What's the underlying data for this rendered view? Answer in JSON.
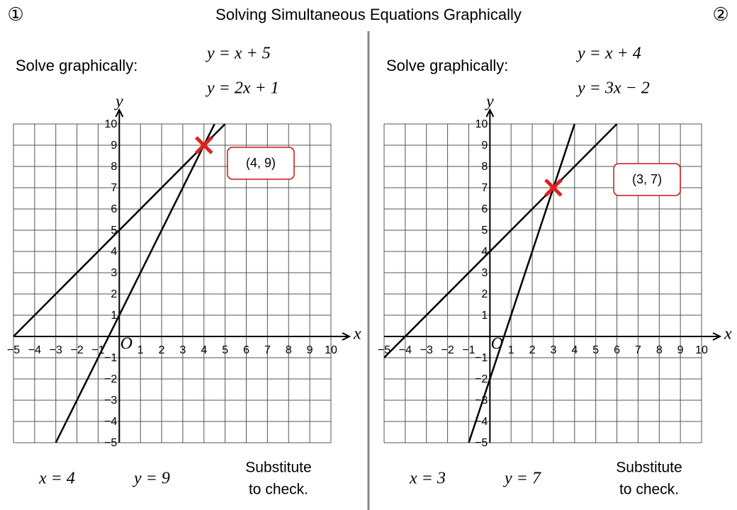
{
  "header": {
    "left_number": "①",
    "title": "Solving Simultaneous Equations Graphically",
    "right_number": "②"
  },
  "panels": [
    {
      "instruction": "Solve graphically:",
      "equations": [
        "y = x + 5",
        "y = 2x + 1"
      ],
      "graph": {
        "x_label": "x",
        "y_label": "y",
        "origin_label": "O",
        "xlim": [
          -5,
          10
        ],
        "ylim": [
          -5,
          10
        ],
        "xticks": [
          {
            "value": -5,
            "label": "−5"
          },
          {
            "value": -4,
            "label": "−4"
          },
          {
            "value": -3,
            "label": "−3"
          },
          {
            "value": -2,
            "label": "−2"
          },
          {
            "value": -1,
            "label": "−1"
          },
          1,
          2,
          3,
          4,
          5,
          6,
          7,
          8,
          9,
          10
        ],
        "yticks": [
          {
            "value": -5,
            "label": "−5"
          },
          {
            "value": -4,
            "label": "−4"
          },
          {
            "value": -3,
            "label": "−3"
          },
          {
            "value": -2,
            "label": "−2"
          },
          {
            "value": -1,
            "label": "−1"
          },
          1,
          2,
          3,
          4,
          5,
          6,
          7,
          8,
          9,
          10
        ],
        "lines": [
          {
            "x": [
              -5,
              5
            ],
            "y": [
              0,
              10
            ]
          },
          {
            "x": [
              -3,
              4.5
            ],
            "y": [
              -5,
              10
            ]
          }
        ],
        "intersection": {
          "x": 4,
          "y": 9,
          "label": "(4, 9)"
        }
      },
      "answers": [
        "x = 4",
        "y = 9"
      ],
      "note": [
        "Substitute",
        "to check."
      ]
    },
    {
      "instruction": "Solve graphically:",
      "equations": [
        "y = x + 4",
        "y = 3x − 2"
      ],
      "graph": {
        "x_label": "x",
        "y_label": "y",
        "origin_label": "O",
        "xlim": [
          -5,
          10
        ],
        "ylim": [
          -5,
          10
        ],
        "xticks": [
          {
            "value": -5,
            "label": "−5"
          },
          {
            "value": -4,
            "label": "−4"
          },
          {
            "value": -3,
            "label": "−3"
          },
          {
            "value": -2,
            "label": "−2"
          },
          {
            "value": -1,
            "label": "−1"
          },
          1,
          2,
          3,
          4,
          5,
          6,
          7,
          8,
          9,
          10
        ],
        "yticks": [
          {
            "value": -5,
            "label": "−5"
          },
          {
            "value": -4,
            "label": "−4"
          },
          {
            "value": -3,
            "label": "−3"
          },
          {
            "value": -2,
            "label": "−2"
          },
          {
            "value": -1,
            "label": "−1"
          },
          1,
          2,
          3,
          4,
          5,
          6,
          7,
          8,
          9,
          10
        ],
        "lines": [
          {
            "x": [
              -5,
              6
            ],
            "y": [
              -1,
              10
            ]
          },
          {
            "x": [
              -1,
              4
            ],
            "y": [
              -5,
              10
            ]
          }
        ],
        "intersection": {
          "x": 3,
          "y": 7,
          "label": "(3, 7)"
        }
      },
      "answers": [
        "x = 3",
        "y = 7"
      ],
      "note": [
        "Substitute",
        "to check."
      ]
    }
  ]
}
